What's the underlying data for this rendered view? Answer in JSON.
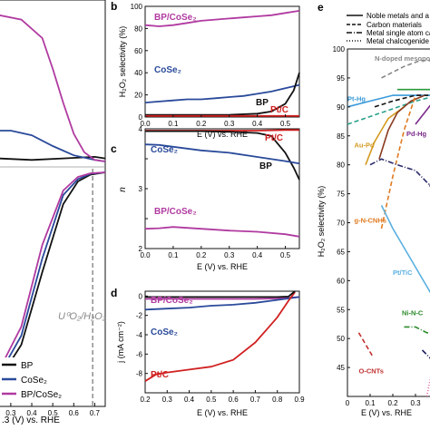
{
  "chart_data": [
    {
      "id": "a",
      "type": "line",
      "panel_letter": "",
      "xlabel": "E (V) vs. RHE",
      "xtick_labels": [
        "0.3",
        "0.4",
        "0.5",
        "0.6",
        "0.7"
      ],
      "xticks": [
        0.3,
        0.4,
        0.5,
        0.6,
        0.7
      ],
      "xlim": [
        0.24,
        0.75
      ],
      "annotation": "U⁰O₂/H₂O₂",
      "reference_line_x": 0.69,
      "legend": [
        "BP",
        "CoSe₂",
        "BP/CoSe₂"
      ],
      "series": [
        {
          "name": "BP",
          "color": "#111111",
          "ring_x": [
            0.24,
            0.4,
            0.55,
            0.7,
            0.75
          ],
          "ring_y": [
            0.02,
            0.01,
            0.02,
            0.03,
            0.02
          ],
          "disk_x": [
            0.24,
            0.35,
            0.45,
            0.55,
            0.62,
            0.68,
            0.75
          ],
          "disk_y": [
            -4.6,
            -3.8,
            -2.2,
            -0.7,
            -0.2,
            -0.05,
            0.0
          ]
        },
        {
          "name": "CoSe₂",
          "color": "#2a4a9a",
          "ring_x": [
            0.24,
            0.3,
            0.4,
            0.5,
            0.6,
            0.7,
            0.75
          ],
          "ring_y": [
            0.2,
            0.2,
            0.17,
            0.1,
            0.04,
            0.01,
            0.0
          ],
          "disk_x": [
            0.24,
            0.35,
            0.45,
            0.55,
            0.62,
            0.68,
            0.75
          ],
          "disk_y": [
            -4.5,
            -3.6,
            -1.9,
            -0.5,
            -0.15,
            -0.03,
            0.0
          ]
        },
        {
          "name": "BP/CoSe₂",
          "color": "#b03aa0",
          "ring_x": [
            0.24,
            0.35,
            0.45,
            0.5,
            0.55,
            0.6,
            0.65,
            0.7,
            0.75
          ],
          "ring_y": [
            0.95,
            0.92,
            0.8,
            0.6,
            0.38,
            0.18,
            0.06,
            0.01,
            0.0
          ],
          "disk_x": [
            0.24,
            0.35,
            0.45,
            0.55,
            0.62,
            0.68,
            0.75
          ],
          "disk_y": [
            -4.4,
            -3.4,
            -1.6,
            -0.4,
            -0.1,
            -0.02,
            0.0
          ]
        }
      ]
    },
    {
      "id": "b",
      "type": "line",
      "panel_letter": "b",
      "xlabel": "E (V) vs. RHE",
      "ylabel": "H₂O₂ selectivity (%)",
      "xlim": [
        0.0,
        0.55
      ],
      "ylim": [
        0,
        100
      ],
      "xticks": [
        0.0,
        0.1,
        0.2,
        0.3,
        0.4,
        0.5
      ],
      "xtick_labels": [
        "0.0",
        "0.1",
        "0.2",
        "0.3",
        "0.4",
        "0.5"
      ],
      "yticks": [
        0,
        20,
        40,
        60,
        80,
        100
      ],
      "ytick_labels": [
        "0",
        "20",
        "40",
        "60",
        "80",
        "100"
      ],
      "series": [
        {
          "name": "BP/CoSe₂",
          "color": "#b03aa0",
          "x": [
            0.0,
            0.05,
            0.1,
            0.15,
            0.2,
            0.25,
            0.3,
            0.35,
            0.4,
            0.45,
            0.5,
            0.55
          ],
          "y": [
            83,
            82,
            83,
            85,
            87,
            88,
            89,
            90,
            91,
            92,
            94,
            96
          ]
        },
        {
          "name": "CoSe₂",
          "color": "#2a4a9a",
          "x": [
            0.0,
            0.05,
            0.1,
            0.15,
            0.2,
            0.25,
            0.3,
            0.35,
            0.4,
            0.45,
            0.5,
            0.55
          ],
          "y": [
            13,
            14,
            15,
            16,
            16,
            17,
            18,
            19,
            21,
            23,
            26,
            29
          ]
        },
        {
          "name": "BP",
          "color": "#111111",
          "x": [
            0.0,
            0.1,
            0.2,
            0.3,
            0.4,
            0.45,
            0.5,
            0.53,
            0.55
          ],
          "y": [
            2,
            2,
            2,
            2,
            3,
            5,
            12,
            24,
            40
          ]
        },
        {
          "name": "Pt/C",
          "color": "#d02020",
          "x": [
            0.0,
            0.1,
            0.2,
            0.3,
            0.4,
            0.5,
            0.55
          ],
          "y": [
            1,
            1,
            1,
            1,
            1,
            1,
            1
          ]
        }
      ]
    },
    {
      "id": "c",
      "type": "line",
      "panel_letter": "c",
      "xlabel": "E (V) vs. RHE",
      "ylabel": "n",
      "xlim": [
        0.0,
        0.55
      ],
      "ylim": [
        2.0,
        4.0
      ],
      "xticks": [
        0.0,
        0.1,
        0.2,
        0.3,
        0.4,
        0.5
      ],
      "xtick_labels": [
        "0.0",
        "0.1",
        "0.2",
        "0.3",
        "0.4",
        "0.5"
      ],
      "yticks": [
        2.0,
        2.5,
        3.0,
        3.5,
        4.0
      ],
      "ytick_labels": [
        "2",
        "",
        "3",
        "",
        "4"
      ],
      "series": [
        {
          "name": "Pt/C",
          "color": "#d02020",
          "x": [
            0.0,
            0.1,
            0.2,
            0.3,
            0.4,
            0.5,
            0.55
          ],
          "y": [
            3.97,
            3.97,
            3.97,
            3.97,
            3.97,
            3.98,
            3.98
          ]
        },
        {
          "name": "BP",
          "color": "#111111",
          "x": [
            0.0,
            0.1,
            0.2,
            0.3,
            0.4,
            0.45,
            0.5,
            0.53,
            0.55
          ],
          "y": [
            3.96,
            3.96,
            3.96,
            3.95,
            3.93,
            3.88,
            3.6,
            3.35,
            3.15
          ]
        },
        {
          "name": "CoSe₂",
          "color": "#2a4a9a",
          "x": [
            0.0,
            0.05,
            0.1,
            0.15,
            0.2,
            0.3,
            0.4,
            0.5,
            0.55
          ],
          "y": [
            3.74,
            3.73,
            3.7,
            3.67,
            3.64,
            3.6,
            3.53,
            3.46,
            3.42
          ]
        },
        {
          "name": "BP/CoSe₂",
          "color": "#b03aa0",
          "x": [
            0.0,
            0.05,
            0.1,
            0.2,
            0.3,
            0.4,
            0.5,
            0.55
          ],
          "y": [
            2.33,
            2.34,
            2.36,
            2.33,
            2.3,
            2.28,
            2.24,
            2.2
          ]
        }
      ]
    },
    {
      "id": "d",
      "type": "line",
      "panel_letter": "d",
      "xlabel": "E (V) vs. RHE",
      "ylabel": "j (mA cm⁻²)",
      "xlim": [
        0.2,
        0.9
      ],
      "ylim": [
        -10,
        0.5
      ],
      "xticks": [
        0.2,
        0.3,
        0.4,
        0.5,
        0.6,
        0.7,
        0.8,
        0.9
      ],
      "xtick_labels": [
        "0.2",
        "0.3",
        "0.4",
        "0.5",
        "0.6",
        "0.7",
        "0.8",
        "0.9"
      ],
      "yticks": [
        0,
        -2,
        -4,
        -6,
        -8
      ],
      "ytick_labels": [
        "0",
        "-2",
        "-4",
        "-6",
        "-8"
      ],
      "series": [
        {
          "name": "BP/CoSe₂",
          "color": "#b03aa0",
          "x": [
            0.2,
            0.3,
            0.4,
            0.5,
            0.6,
            0.7,
            0.8,
            0.9
          ],
          "y": [
            -0.3,
            -0.3,
            -0.3,
            -0.3,
            -0.3,
            -0.3,
            -0.25,
            -0.1
          ]
        },
        {
          "name": "CoSe₂",
          "color": "#2a4a9a",
          "x": [
            0.2,
            0.3,
            0.4,
            0.5,
            0.6,
            0.7,
            0.8,
            0.9
          ],
          "y": [
            -1.4,
            -1.3,
            -1.2,
            -1.0,
            -0.9,
            -0.7,
            -0.4,
            -0.1
          ]
        },
        {
          "name": "Pt/C",
          "color": "#d02020",
          "x": [
            0.2,
            0.25,
            0.3,
            0.4,
            0.5,
            0.6,
            0.7,
            0.75,
            0.8,
            0.85,
            0.88
          ],
          "y": [
            -8.8,
            -8.1,
            -7.9,
            -7.6,
            -7.3,
            -6.6,
            -4.8,
            -3.5,
            -2.2,
            -0.5,
            0.4
          ]
        },
        {
          "name": "BP",
          "color": "#111111",
          "x": [
            0.2,
            0.4,
            0.6,
            0.8,
            0.85,
            0.88
          ],
          "y": [
            -0.1,
            -0.1,
            -0.1,
            -0.1,
            -0.05,
            0.5
          ]
        }
      ]
    },
    {
      "id": "e",
      "type": "line",
      "panel_letter": "e",
      "xlabel": "E (V) vs. RHE",
      "ylabel": "H₂O₂ selectivity (%)",
      "xlim": [
        0.0,
        0.4
      ],
      "ylim": [
        40,
        100
      ],
      "yticks": [
        45,
        50,
        55,
        60,
        65,
        70,
        75,
        80,
        85,
        90,
        95,
        100
      ],
      "ytick_labels": [
        "45",
        "50",
        "55",
        "60",
        "65",
        "70",
        "75",
        "80",
        "85",
        "90",
        "95",
        "100"
      ],
      "xticks": [
        0.0,
        0.1,
        0.2,
        0.3
      ],
      "xtick_labels": [
        "0",
        "0.1",
        "0.2",
        "0.3"
      ],
      "legend": [
        "Noble metals and a",
        "Carbon materials",
        "Metal single atom ca",
        "Metal chalcogenide"
      ],
      "series": [
        {
          "name": "N-doped mesoporous C",
          "color": "#888888",
          "style": "dash",
          "x": [
            0.15,
            0.25,
            0.32,
            0.4
          ],
          "y": [
            95,
            97,
            98,
            98
          ]
        },
        {
          "name": "Pt-Hg",
          "color": "#3a9ad9",
          "style": "solid",
          "x": [
            0.0,
            0.1,
            0.2,
            0.3,
            0.4
          ],
          "y": [
            90,
            91,
            92,
            92,
            92
          ]
        },
        {
          "name": "green",
          "color": "#2a9a3a",
          "style": "solid",
          "x": [
            0.22,
            0.3,
            0.4
          ],
          "y": [
            93,
            93,
            93
          ]
        },
        {
          "name": "black-dash",
          "color": "#111111",
          "style": "dash",
          "x": [
            0.12,
            0.2,
            0.3,
            0.4
          ],
          "y": [
            90,
            91,
            92,
            92
          ]
        },
        {
          "name": "teal-dash",
          "color": "#2aa08a",
          "style": "dash",
          "x": [
            0.0,
            0.15,
            0.3,
            0.4
          ],
          "y": [
            87,
            89,
            91,
            92
          ]
        },
        {
          "name": "Au-Pd",
          "color": "#d49a20",
          "style": "solid",
          "x": [
            0.08,
            0.12,
            0.18,
            0.25
          ],
          "y": [
            80,
            84,
            88,
            90
          ]
        },
        {
          "name": "brown",
          "color": "#8a3a20",
          "style": "solid",
          "x": [
            0.14,
            0.18,
            0.22,
            0.28,
            0.34
          ],
          "y": [
            81,
            86,
            89,
            91,
            92
          ]
        },
        {
          "name": "Pd-Hg",
          "color": "#7a2a8a",
          "style": "solid",
          "x": [
            0.3,
            0.34,
            0.38,
            0.4
          ],
          "y": [
            87,
            89,
            91,
            92
          ]
        },
        {
          "name": "g-N-CNHs",
          "color": "#e07a20",
          "style": "dash",
          "x": [
            0.15,
            0.2,
            0.25,
            0.3
          ],
          "y": [
            69,
            78,
            86,
            92
          ]
        },
        {
          "name": "Co-N",
          "color": "#2a2a6a",
          "style": "dashdot",
          "x": [
            0.1,
            0.15,
            0.22,
            0.3,
            0.4
          ],
          "y": [
            80,
            81,
            80,
            79,
            75
          ]
        },
        {
          "name": "Pt/TiC",
          "color": "#5ab0e0",
          "style": "solid",
          "x": [
            0.15,
            0.2,
            0.26,
            0.32,
            0.38
          ],
          "y": [
            73,
            69,
            65,
            61,
            57
          ]
        },
        {
          "name": "Ni-N-C",
          "color": "#2a8a2a",
          "style": "dashdot",
          "x": [
            0.25,
            0.3,
            0.35,
            0.4
          ],
          "y": [
            52,
            52,
            51,
            51
          ]
        },
        {
          "name": "O-CNTs",
          "color": "#c03030",
          "style": "dash",
          "x": [
            0.05,
            0.08,
            0.11
          ],
          "y": [
            51,
            49,
            47
          ]
        },
        {
          "name": "navy-dashdot",
          "color": "#1a1a5a",
          "style": "dashdot",
          "x": [
            0.33,
            0.38,
            0.4
          ],
          "y": [
            48,
            46,
            45
          ]
        },
        {
          "name": "pink-dot",
          "color": "#e060a0",
          "style": "dot",
          "x": [
            0.35,
            0.37,
            0.39
          ],
          "y": [
            40,
            44,
            48
          ]
        }
      ],
      "labels": [
        {
          "text": "N-doped mesoporous C",
          "x": 0.12,
          "y": 98,
          "color": "#888888"
        },
        {
          "text": "Pt-Hg",
          "x": 0.0,
          "y": 91,
          "color": "#3a9ad9"
        },
        {
          "text": "Au-Pd",
          "x": 0.03,
          "y": 83,
          "color": "#d49a20"
        },
        {
          "text": "Pd-Hg",
          "x": 0.26,
          "y": 85,
          "color": "#7a2a8a"
        },
        {
          "text": "Co-N",
          "x": 0.36,
          "y": 76,
          "color": "#2a2a6a"
        },
        {
          "text": "g-N-CNHs",
          "x": 0.03,
          "y": 70,
          "color": "#e07a20"
        },
        {
          "text": "Pt/TiC",
          "x": 0.2,
          "y": 61,
          "color": "#5ab0e0"
        },
        {
          "text": "Ni-N-C",
          "x": 0.24,
          "y": 54,
          "color": "#2a8a2a"
        },
        {
          "text": "O-CNTs",
          "x": 0.05,
          "y": 44,
          "color": "#c03030"
        }
      ]
    }
  ],
  "legend_a_title": "",
  "panel_b_labels": {
    "bp_cose2": "BP/CoSe₂",
    "cose2": "CoSe₂",
    "bp": "BP",
    "ptc": "Pt/C"
  },
  "panel_c_labels": {
    "ptc": "Pt/C",
    "bp": "BP",
    "cose2": "CoSe₂",
    "bp_cose2": "BP/CoSe₂"
  },
  "panel_d_labels": {
    "bp_cose2": "BP/CoSe₂",
    "cose2": "CoSe₂",
    "ptc": "Pt/C"
  },
  "panel_a_xlabel_prefix": ".3 (V) vs. RHE"
}
